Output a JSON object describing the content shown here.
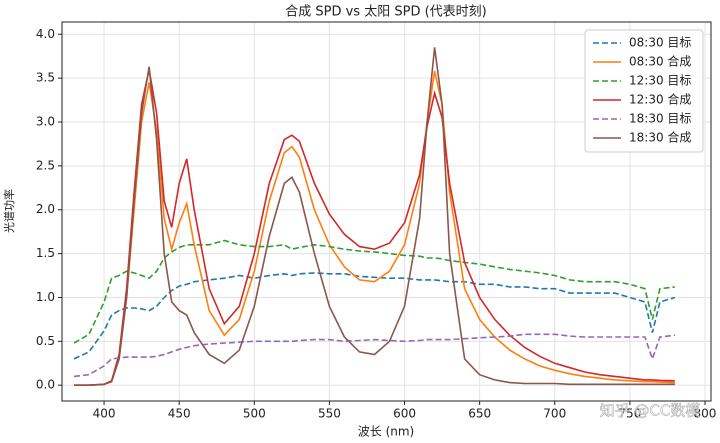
{
  "chart_data": {
    "type": "line",
    "title": "合成 SPD vs 太阳 SPD (代表时刻)",
    "x_label": "波长 (nm)",
    "y_label": "光谱功率",
    "watermark": "知乎 @CC数模",
    "x": [
      380,
      390,
      400,
      405,
      410,
      415,
      420,
      425,
      430,
      435,
      440,
      445,
      450,
      455,
      460,
      470,
      480,
      490,
      500,
      510,
      520,
      525,
      530,
      540,
      550,
      560,
      570,
      580,
      590,
      600,
      610,
      615,
      620,
      625,
      630,
      640,
      650,
      660,
      670,
      680,
      690,
      700,
      710,
      720,
      730,
      740,
      750,
      760,
      765,
      770,
      780
    ],
    "series": [
      {
        "name": "08:30 目标",
        "color": "#1f77b4",
        "linestyle": "dashed",
        "values": [
          0.3,
          0.38,
          0.62,
          0.8,
          0.85,
          0.88,
          0.88,
          0.87,
          0.85,
          0.9,
          1.0,
          1.08,
          1.13,
          1.15,
          1.18,
          1.2,
          1.22,
          1.25,
          1.22,
          1.25,
          1.27,
          1.25,
          1.27,
          1.28,
          1.27,
          1.27,
          1.24,
          1.23,
          1.22,
          1.22,
          1.2,
          1.2,
          1.2,
          1.19,
          1.18,
          1.18,
          1.15,
          1.15,
          1.12,
          1.12,
          1.1,
          1.1,
          1.05,
          1.05,
          1.05,
          1.05,
          1.0,
          0.95,
          0.6,
          0.95,
          1.0
        ]
      },
      {
        "name": "08:30 合成",
        "color": "#ff7f0e",
        "linestyle": "solid",
        "values": [
          0,
          0,
          0.01,
          0.05,
          0.3,
          1.0,
          2.0,
          3.0,
          3.45,
          2.9,
          1.9,
          1.55,
          1.85,
          2.07,
          1.6,
          0.85,
          0.57,
          0.75,
          1.3,
          2.1,
          2.65,
          2.72,
          2.6,
          2.0,
          1.6,
          1.35,
          1.2,
          1.18,
          1.3,
          1.6,
          2.3,
          3.0,
          3.58,
          3.2,
          2.2,
          1.1,
          0.75,
          0.55,
          0.4,
          0.3,
          0.22,
          0.17,
          0.13,
          0.1,
          0.08,
          0.06,
          0.05,
          0.04,
          0.04,
          0.035,
          0.03
        ]
      },
      {
        "name": "12:30 目标",
        "color": "#2ca02c",
        "linestyle": "dashed",
        "values": [
          0.48,
          0.58,
          0.95,
          1.22,
          1.25,
          1.3,
          1.28,
          1.25,
          1.22,
          1.3,
          1.45,
          1.52,
          1.57,
          1.6,
          1.6,
          1.6,
          1.65,
          1.6,
          1.58,
          1.58,
          1.6,
          1.55,
          1.57,
          1.6,
          1.58,
          1.55,
          1.53,
          1.52,
          1.5,
          1.48,
          1.47,
          1.45,
          1.45,
          1.44,
          1.42,
          1.4,
          1.38,
          1.35,
          1.32,
          1.3,
          1.28,
          1.25,
          1.2,
          1.18,
          1.18,
          1.18,
          1.15,
          1.1,
          0.75,
          1.1,
          1.12
        ]
      },
      {
        "name": "12:30 合成",
        "color": "#d62728",
        "linestyle": "solid",
        "values": [
          0,
          0,
          0.01,
          0.05,
          0.35,
          1.1,
          2.2,
          3.2,
          3.6,
          3.1,
          2.1,
          1.8,
          2.3,
          2.58,
          2.0,
          1.1,
          0.7,
          0.9,
          1.5,
          2.3,
          2.8,
          2.85,
          2.78,
          2.3,
          1.95,
          1.72,
          1.58,
          1.55,
          1.62,
          1.85,
          2.4,
          2.95,
          3.33,
          3.05,
          2.3,
          1.4,
          1.0,
          0.75,
          0.57,
          0.43,
          0.33,
          0.25,
          0.2,
          0.15,
          0.12,
          0.1,
          0.08,
          0.06,
          0.06,
          0.055,
          0.05
        ]
      },
      {
        "name": "18:30 目标",
        "color": "#9467bd",
        "linestyle": "dashed",
        "values": [
          0.1,
          0.12,
          0.22,
          0.3,
          0.31,
          0.32,
          0.32,
          0.32,
          0.32,
          0.33,
          0.35,
          0.38,
          0.41,
          0.43,
          0.45,
          0.47,
          0.48,
          0.49,
          0.5,
          0.5,
          0.5,
          0.5,
          0.51,
          0.52,
          0.52,
          0.5,
          0.51,
          0.52,
          0.51,
          0.5,
          0.51,
          0.52,
          0.52,
          0.52,
          0.52,
          0.53,
          0.54,
          0.55,
          0.56,
          0.58,
          0.58,
          0.58,
          0.56,
          0.55,
          0.55,
          0.55,
          0.55,
          0.55,
          0.3,
          0.55,
          0.57
        ]
      },
      {
        "name": "18:30 合成",
        "color": "#8c564b",
        "linestyle": "solid",
        "values": [
          0,
          0,
          0.01,
          0.04,
          0.3,
          1.0,
          2.1,
          3.1,
          3.63,
          2.8,
          1.5,
          0.95,
          0.85,
          0.8,
          0.6,
          0.35,
          0.25,
          0.4,
          0.9,
          1.7,
          2.3,
          2.37,
          2.2,
          1.5,
          0.9,
          0.55,
          0.38,
          0.35,
          0.5,
          0.9,
          1.9,
          3.0,
          3.85,
          3.2,
          1.5,
          0.3,
          0.12,
          0.06,
          0.03,
          0.02,
          0.02,
          0.02,
          0.01,
          0.01,
          0.01,
          0.01,
          0.01,
          0.01,
          0.01,
          0.01,
          0.01
        ]
      }
    ],
    "xlim": [
      372,
      804
    ],
    "ylim": [
      -0.18,
      4.14
    ],
    "xticks": [
      400,
      450,
      500,
      550,
      600,
      650,
      700,
      750,
      800
    ],
    "yticks": [
      {
        "value": 0,
        "label": "0.0"
      },
      0.5,
      {
        "value": 1,
        "label": "1.0"
      },
      1.5,
      {
        "value": 2,
        "label": "2.0"
      },
      2.5,
      {
        "value": 3,
        "label": "3.0"
      },
      3.5,
      {
        "value": 4,
        "label": "4.0"
      }
    ],
    "grid": true,
    "legend": "upper right"
  }
}
